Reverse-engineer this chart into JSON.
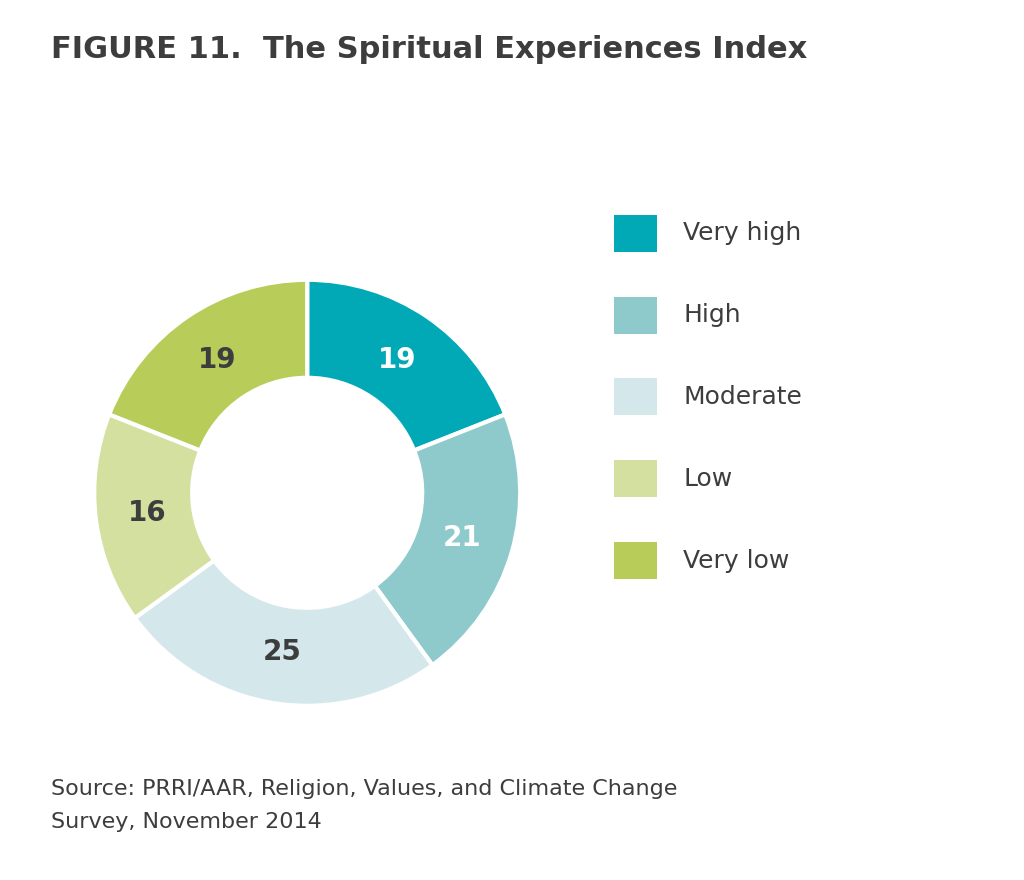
{
  "title": "FIGURE 11.  The Spiritual Experiences Index",
  "slices": [
    19,
    21,
    25,
    16,
    19
  ],
  "labels": [
    "Very high",
    "High",
    "Moderate",
    "Low",
    "Very low"
  ],
  "colors": [
    "#00a9b5",
    "#8ecacc",
    "#d4e8ec",
    "#d4e0a0",
    "#b8cc5a"
  ],
  "source_text": "Source: PRRI/AAR, Religion, Values, and Climate Change\nSurvey, November 2014",
  "background_color": "#ffffff",
  "title_fontsize": 22,
  "label_fontsize": 20,
  "legend_fontsize": 18,
  "source_fontsize": 16,
  "text_color_dark": "#3d3d3d",
  "text_color_white": "#ffffff"
}
